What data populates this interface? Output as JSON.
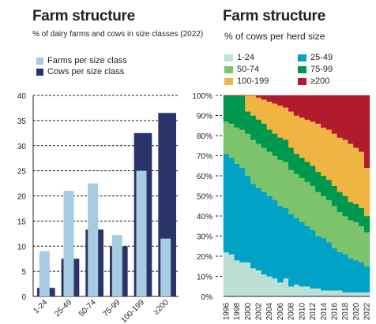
{
  "chart_data": [
    {
      "type": "bar",
      "title": "Farm structure",
      "subtitle": "% of dairy farms and cows in size classes (2022)",
      "categories": [
        "1-24",
        "25-49",
        "50-74",
        "75-99",
        "100-199",
        "≥200"
      ],
      "series": [
        {
          "name": "Farms per size class",
          "color": "#a7cbe0",
          "values": [
            9,
            21,
            22.5,
            12.2,
            25,
            11.5
          ]
        },
        {
          "name": "Cows per size class",
          "color": "#2a3468",
          "values": [
            1.7,
            7.5,
            13.3,
            10,
            32.5,
            36.5
          ]
        }
      ],
      "yticks": [
        0,
        5,
        10,
        15,
        20,
        25,
        30,
        35,
        40
      ],
      "ylim": [
        0,
        40
      ],
      "grid": true,
      "legend": "top-left"
    },
    {
      "type": "area",
      "title": "Farm structure",
      "subtitle": "% of cows per herd size",
      "x": [
        1996,
        1997,
        1998,
        1999,
        2000,
        2001,
        2002,
        2003,
        2004,
        2005,
        2006,
        2007,
        2008,
        2009,
        2010,
        2011,
        2012,
        2013,
        2014,
        2015,
        2016,
        2017,
        2018,
        2019,
        2020,
        2021,
        2022
      ],
      "xtick_labels": [
        "1996",
        "1998",
        "2000",
        "2002",
        "2004",
        "2006",
        "2008",
        "2010",
        "2012",
        "2014",
        "2016",
        "2018",
        "2020",
        "2022"
      ],
      "yticks": [
        "0%",
        "10%",
        "20%",
        "30%",
        "40%",
        "50%",
        "60%",
        "70%",
        "80%",
        "90%",
        "100%"
      ],
      "ylim": [
        0,
        100
      ],
      "stacked": true,
      "legend": "top",
      "series": [
        {
          "name": "1-24",
          "color": "#bde0d6",
          "values": [
            22,
            21,
            18,
            17,
            17,
            14,
            13,
            11,
            10,
            9,
            7,
            9,
            5,
            6,
            5,
            5,
            4,
            4,
            3,
            3,
            3,
            3,
            2,
            2,
            2,
            2,
            2
          ]
        },
        {
          "name": "25-49",
          "color": "#00a3c6",
          "values": [
            49,
            48,
            48,
            47,
            43,
            42,
            41,
            41,
            40,
            39,
            38,
            35,
            36,
            33,
            32,
            30,
            29,
            26,
            26,
            24,
            21,
            19,
            19,
            17,
            16,
            15,
            13
          ]
        },
        {
          "name": "50-74",
          "color": "#7dc36b",
          "values": [
            16,
            17,
            18,
            19,
            21,
            22,
            22,
            22,
            22,
            22,
            23,
            23,
            22,
            22,
            22,
            22,
            22,
            22,
            21,
            21,
            21,
            20,
            19,
            19,
            19,
            18,
            17
          ]
        },
        {
          "name": "75-99",
          "color": "#00974f",
          "values": [
            13,
            14,
            16,
            17,
            11,
            12,
            12,
            12,
            11,
            11,
            11,
            11,
            11,
            10,
            10,
            10,
            10,
            10,
            10,
            10,
            10,
            10,
            10,
            9,
            9,
            9,
            8
          ]
        },
        {
          "name": "100-199",
          "color": "#f0b442",
          "values": [
            0,
            0,
            0,
            0,
            8,
            10,
            11,
            12,
            14,
            15,
            16,
            16,
            18,
            19,
            20,
            21,
            22,
            24,
            24,
            25,
            26,
            27,
            28,
            29,
            28,
            28,
            24
          ]
        },
        {
          "name": "≥200",
          "color": "#b01c2e",
          "values": [
            0,
            0,
            0,
            0,
            0,
            0,
            1,
            2,
            3,
            4,
            5,
            6,
            8,
            10,
            11,
            12,
            13,
            14,
            16,
            17,
            19,
            21,
            22,
            24,
            26,
            28,
            36
          ]
        }
      ]
    }
  ]
}
